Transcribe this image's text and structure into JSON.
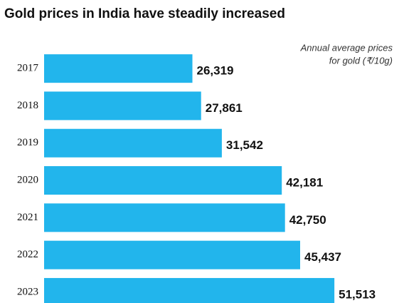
{
  "chart_data": {
    "type": "bar",
    "orientation": "horizontal",
    "title": "Gold prices in India have steadily increased",
    "annotation": [
      "Annual average prices",
      "for gold (₹/10g)"
    ],
    "categories": [
      "2017",
      "2018",
      "2019",
      "2020",
      "2021",
      "2022",
      "2023"
    ],
    "values": [
      26319,
      27861,
      31542,
      42181,
      42750,
      45437,
      51513
    ],
    "value_labels": [
      "26,319",
      "27,861",
      "31,542",
      "42,181",
      "42,750",
      "45,437",
      "51,513"
    ],
    "color": "#22b5ec",
    "xlim": [
      0,
      52000
    ]
  }
}
